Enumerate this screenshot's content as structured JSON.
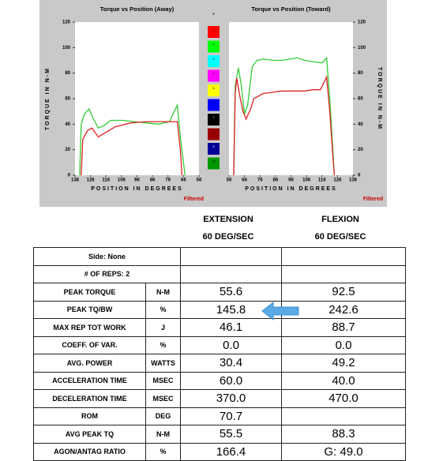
{
  "chart_data": [
    {
      "type": "line",
      "title": "Torque vs Position (Away)",
      "x_label": "POSITION IN DEGREES",
      "y_label": "TORQUE IN N-M",
      "note": "Filtered",
      "xlim": [
        136,
        56
      ],
      "ylim": [
        0,
        120
      ],
      "xticks": [
        136,
        126,
        116,
        106,
        96,
        86,
        76,
        66,
        56
      ],
      "yticks": [
        0,
        20,
        40,
        60,
        80,
        100,
        120
      ],
      "series": [
        {
          "color": "#33cc33",
          "x": [
            133,
            132,
            130,
            127,
            124,
            121,
            117,
            113,
            105,
            98,
            90,
            82,
            75,
            72,
            70,
            68,
            65
          ],
          "values": [
            0,
            40,
            48,
            52,
            44,
            37,
            39,
            43,
            43,
            42,
            41,
            40,
            42,
            50,
            55,
            30,
            0
          ]
        },
        {
          "color": "#dd2222",
          "x": [
            132,
            131,
            128,
            125,
            121,
            117,
            110,
            100,
            90,
            80,
            72,
            70,
            68,
            67
          ],
          "values": [
            0,
            28,
            35,
            37,
            30,
            33,
            38,
            41,
            42,
            42,
            42,
            42,
            20,
            0
          ]
        }
      ]
    },
    {
      "type": "line",
      "title": "Torque vs Position (Toward)",
      "x_label": "POSITION IN DEGREES",
      "y_label": "TORQUE IN N-M",
      "note": "Filtered",
      "xlim": [
        56,
        136
      ],
      "ylim": [
        0,
        120
      ],
      "xticks": [
        56,
        66,
        76,
        86,
        96,
        106,
        116,
        126,
        136
      ],
      "yticks": [
        0,
        20,
        40,
        60,
        80,
        100,
        120
      ],
      "series": [
        {
          "color": "#33cc33",
          "x": [
            59,
            60,
            62,
            64,
            66,
            68,
            71,
            74,
            78,
            85,
            90,
            95,
            100,
            105,
            110,
            116,
            119,
            121,
            123,
            124
          ],
          "values": [
            0,
            70,
            84,
            70,
            48,
            55,
            85,
            90,
            91,
            90,
            90,
            91,
            92,
            90,
            89,
            88,
            92,
            60,
            20,
            0
          ]
        },
        {
          "color": "#dd2222",
          "x": [
            59,
            60,
            61,
            63,
            65,
            67,
            70,
            72,
            75,
            78,
            84,
            90,
            100,
            105,
            110,
            115,
            119,
            121,
            123,
            124
          ],
          "values": [
            0,
            65,
            76,
            62,
            50,
            44,
            52,
            60,
            62,
            64,
            65,
            66,
            66,
            66,
            67,
            67,
            77,
            50,
            15,
            0
          ]
        }
      ]
    }
  ],
  "legend_markers": {
    "title": "*",
    "labels": [
      "1",
      "2",
      "3",
      "4",
      "5",
      "6",
      "7",
      "8",
      "9",
      "10"
    ],
    "colors": [
      "#ff0000",
      "#00ff00",
      "#00ffff",
      "#ff00ff",
      "#ffff00",
      "#0000ff",
      "#000000",
      "#990000",
      "#000099",
      "#009900"
    ]
  },
  "table": {
    "headers": [
      [
        "EXTENSION",
        "60 DEG/SEC"
      ],
      [
        "FLEXION",
        "60 DEG/SEC"
      ]
    ],
    "info_rows": [
      "Side: None",
      "# OF REPS: 2"
    ],
    "rows": [
      [
        "PEAK TORQUE",
        "N-M",
        "55.6",
        "92.5"
      ],
      [
        "PEAK TQ/BW",
        "%",
        "145.8",
        "242.6"
      ],
      [
        "MAX REP TOT WORK",
        "J",
        "46.1",
        "88.7"
      ],
      [
        "COEFF. OF VAR.",
        "%",
        "0.0",
        "0.0"
      ],
      [
        "AVG. POWER",
        "WATTS",
        "30.4",
        "49.2"
      ],
      [
        "ACCELERATION TIME",
        "MSEC",
        "60.0",
        "40.0"
      ],
      [
        "DECELERATION TIME",
        "MSEC",
        "370.0",
        "470.0"
      ],
      [
        "ROM",
        "DEG",
        "70.7",
        null
      ],
      [
        "AVG PEAK TQ",
        "N-M",
        "55.5",
        "88.3"
      ],
      [
        "AGON/ANTAG RATIO",
        "%",
        "166.4",
        "G: 49.0"
      ]
    ]
  }
}
